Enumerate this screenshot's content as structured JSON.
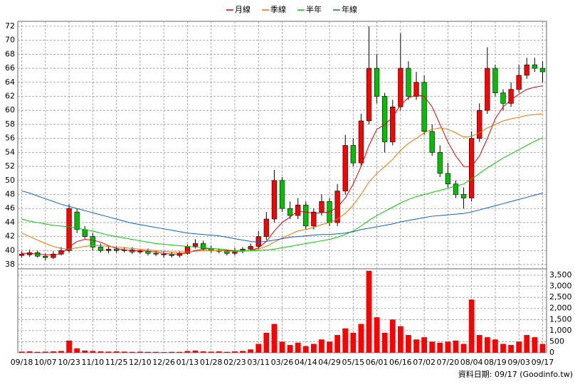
{
  "chart_data": [
    {
      "type": "candlestick",
      "open": [
        39.3,
        39.4,
        39.7,
        39.2,
        39.0,
        39.5,
        40.0,
        45.5,
        43.0,
        42.0,
        40.5,
        40.0,
        40.2,
        40.0,
        40.1,
        39.8,
        39.9,
        39.6,
        39.5,
        39.4,
        39.3,
        39.6,
        40.6,
        41.0,
        40.3,
        40.0,
        39.9,
        39.6,
        40.0,
        40.2,
        40.6,
        42.0,
        44.5,
        50.0,
        46.0,
        45.0,
        46.5,
        43.5,
        45.5,
        47.0,
        44.0,
        48.5,
        55.0,
        52.5,
        58.5,
        66.0,
        62.0,
        55.5,
        60.5,
        66.0,
        62.0,
        64.0,
        57.0,
        54.0,
        51.0,
        49.5,
        48.0,
        47.5,
        56.0,
        60.0,
        66.0,
        62.5,
        61.0,
        63.0,
        65.0,
        66.5,
        66.0
      ],
      "high": [
        39.9,
        40.1,
        40.0,
        39.6,
        39.9,
        40.5,
        46.6,
        46.0,
        43.5,
        42.5,
        41.0,
        40.6,
        40.6,
        40.5,
        40.5,
        40.2,
        40.3,
        40.0,
        39.9,
        39.8,
        39.9,
        40.9,
        41.6,
        41.4,
        40.7,
        40.3,
        40.2,
        40.4,
        40.5,
        41.0,
        42.8,
        45.5,
        51.5,
        50.5,
        47.0,
        47.5,
        47.0,
        46.0,
        48.0,
        47.5,
        49.5,
        56.5,
        56.0,
        59.5,
        72.0,
        68.0,
        62.5,
        61.5,
        71.0,
        67.0,
        65.5,
        65.0,
        58.0,
        55.0,
        52.5,
        50.0,
        49.0,
        57.0,
        61.0,
        69.0,
        66.5,
        63.0,
        64.0,
        66.5,
        67.5,
        67.5,
        67.0
      ],
      "low": [
        39.0,
        39.1,
        39.0,
        38.6,
        38.8,
        39.3,
        39.7,
        42.5,
        41.7,
        40.0,
        39.7,
        39.6,
        39.7,
        39.7,
        39.5,
        39.5,
        39.3,
        39.2,
        39.0,
        39.0,
        39.0,
        39.4,
        40.3,
        40.0,
        39.7,
        39.6,
        39.3,
        39.3,
        39.6,
        39.9,
        40.2,
        41.5,
        44.0,
        45.5,
        44.5,
        44.5,
        43.0,
        43.0,
        45.0,
        43.5,
        43.5,
        48.0,
        52.0,
        52.0,
        58.0,
        61.0,
        54.0,
        55.0,
        60.0,
        61.5,
        61.5,
        56.5,
        53.5,
        50.5,
        49.0,
        47.5,
        46.0,
        47.0,
        55.5,
        59.5,
        62.0,
        60.0,
        60.5,
        62.5,
        64.5,
        65.5,
        64.0
      ],
      "close": [
        39.5,
        39.7,
        39.2,
        39.0,
        39.5,
        40.0,
        46.0,
        43.0,
        42.0,
        40.5,
        40.0,
        40.2,
        40.0,
        40.1,
        39.8,
        39.9,
        39.6,
        39.5,
        39.4,
        39.3,
        39.6,
        40.6,
        41.0,
        40.3,
        40.0,
        39.9,
        39.6,
        40.0,
        40.2,
        40.6,
        42.0,
        44.5,
        50.0,
        46.0,
        45.0,
        46.5,
        43.5,
        45.5,
        47.0,
        44.0,
        48.5,
        55.0,
        52.5,
        58.5,
        66.0,
        62.0,
        55.5,
        60.5,
        66.0,
        62.0,
        64.0,
        57.0,
        54.0,
        51.0,
        49.5,
        48.0,
        47.5,
        56.0,
        60.0,
        66.0,
        62.5,
        61.0,
        63.0,
        65.0,
        66.5,
        66.0,
        65.5
      ],
      "up_color": "#ff0000",
      "down_color": "#00c000",
      "series": [
        {
          "name": "月線",
          "color": "#e00000",
          "values": [
            39.6,
            39.6,
            39.5,
            39.4,
            39.4,
            39.5,
            40.5,
            41.3,
            41.6,
            41.5,
            41.2,
            40.7,
            40.3,
            40.1,
            40.0,
            40.0,
            39.9,
            39.8,
            39.6,
            39.5,
            39.5,
            39.7,
            40.0,
            40.2,
            40.3,
            40.2,
            40.0,
            39.9,
            39.9,
            40.0,
            40.4,
            41.3,
            42.8,
            44.0,
            44.8,
            45.6,
            45.5,
            45.3,
            45.4,
            45.5,
            46.2,
            47.5,
            49.5,
            52.0,
            55.0,
            57.3,
            58.0,
            59.0,
            60.8,
            61.8,
            62.2,
            62.0,
            60.5,
            58.0,
            55.5,
            53.5,
            52.0,
            52.0,
            53.5,
            56.0,
            58.8,
            60.5,
            61.5,
            62.3,
            63.0,
            63.3,
            63.5
          ]
        },
        {
          "name": "季線",
          "color": "#f07000",
          "values": [
            42.5,
            42.0,
            41.5,
            41.0,
            40.6,
            40.3,
            40.2,
            40.4,
            40.6,
            40.7,
            40.7,
            40.6,
            40.5,
            40.4,
            40.3,
            40.2,
            40.1,
            40.0,
            39.9,
            39.8,
            39.8,
            39.8,
            39.9,
            40.0,
            40.0,
            40.0,
            39.9,
            39.9,
            39.9,
            40.0,
            40.2,
            40.6,
            41.2,
            41.8,
            42.3,
            42.8,
            43.0,
            43.3,
            43.7,
            44.0,
            44.5,
            45.3,
            46.5,
            48.0,
            49.8,
            51.0,
            52.0,
            53.0,
            54.3,
            55.3,
            56.0,
            56.8,
            57.3,
            57.5,
            57.3,
            56.8,
            56.2,
            56.3,
            56.8,
            57.5,
            58.0,
            58.5,
            58.8,
            59.0,
            59.3,
            59.4,
            59.5
          ]
        },
        {
          "name": "半年",
          "color": "#00cc00",
          "values": [
            44.5,
            44.2,
            44.0,
            43.8,
            43.6,
            43.5,
            43.4,
            43.2,
            43.0,
            42.8,
            42.5,
            42.2,
            42.0,
            41.8,
            41.6,
            41.4,
            41.2,
            41.0,
            40.9,
            40.8,
            40.7,
            40.6,
            40.5,
            40.4,
            40.3,
            40.2,
            40.1,
            40.0,
            40.0,
            40.0,
            40.0,
            40.1,
            40.2,
            40.4,
            40.6,
            40.8,
            41.0,
            41.2,
            41.4,
            41.6,
            41.9,
            42.3,
            42.8,
            43.5,
            44.3,
            45.0,
            45.6,
            46.2,
            46.8,
            47.3,
            47.7,
            48.0,
            48.3,
            48.6,
            48.9,
            49.2,
            49.5,
            50.2,
            51.0,
            51.8,
            52.5,
            53.2,
            53.8,
            54.4,
            55.0,
            55.6,
            56.1
          ]
        },
        {
          "name": "年線",
          "color": "#1060d0",
          "values": [
            48.5,
            48.2,
            47.8,
            47.4,
            47.0,
            46.6,
            46.3,
            46.0,
            45.7,
            45.4,
            45.1,
            44.8,
            44.5,
            44.2,
            43.9,
            43.7,
            43.5,
            43.3,
            43.1,
            42.9,
            42.7,
            42.5,
            42.4,
            42.3,
            42.2,
            42.1,
            41.9,
            41.7,
            41.5,
            41.3,
            41.2,
            41.3,
            41.5,
            41.7,
            41.9,
            42.0,
            42.1,
            42.2,
            42.3,
            42.3,
            42.4,
            42.5,
            42.7,
            43.0,
            43.2,
            43.4,
            43.6,
            43.8,
            44.1,
            44.3,
            44.5,
            44.7,
            44.9,
            45.0,
            45.1,
            45.2,
            45.3,
            45.5,
            45.8,
            46.1,
            46.4,
            46.7,
            47.0,
            47.3,
            47.6,
            47.9,
            48.2
          ]
        }
      ],
      "ylim": [
        37.4,
        72.7
      ],
      "yticks": [
        38,
        40,
        42,
        44,
        46,
        48,
        50,
        52,
        54,
        56,
        58,
        60,
        62,
        64,
        66,
        68,
        70,
        72
      ],
      "grid": true
    },
    {
      "type": "bar",
      "categories": [
        "09/18",
        null,
        null,
        "10/07",
        null,
        null,
        "10/23",
        null,
        null,
        "11/10",
        null,
        null,
        "11/25",
        null,
        null,
        "12/10",
        null,
        null,
        "12/26",
        null,
        null,
        "01/13",
        null,
        null,
        "01/28",
        null,
        null,
        "02/23",
        null,
        null,
        "03/11",
        null,
        null,
        "03/26",
        null,
        null,
        "04/14",
        null,
        null,
        "04/29",
        null,
        null,
        "05/15",
        null,
        null,
        "06/01",
        null,
        null,
        "06/16",
        null,
        null,
        "07/02",
        null,
        null,
        "07/20",
        null,
        null,
        "08/04",
        null,
        null,
        "08/19",
        null,
        null,
        "09/03",
        null,
        null,
        "09/17"
      ],
      "values": [
        50,
        60,
        40,
        50,
        60,
        80,
        550,
        200,
        100,
        80,
        60,
        50,
        60,
        50,
        40,
        50,
        40,
        40,
        30,
        40,
        40,
        80,
        100,
        60,
        50,
        60,
        40,
        60,
        80,
        150,
        400,
        900,
        1300,
        500,
        350,
        450,
        300,
        400,
        600,
        500,
        800,
        1100,
        900,
        1300,
        3700,
        1600,
        900,
        1500,
        1200,
        800,
        600,
        700,
        500,
        450,
        500,
        550,
        400,
        2400,
        800,
        700,
        600,
        400,
        350,
        500,
        800,
        700,
        400
      ],
      "color": "#ff0000",
      "ylim": [
        0,
        3790
      ],
      "yticks": [
        0,
        500,
        {
          "value": 1000,
          "label": "1,000"
        },
        {
          "value": 1500,
          "label": "1,500"
        },
        {
          "value": 2000,
          "label": "2,000"
        },
        {
          "value": 2500,
          "label": "2,500"
        },
        {
          "value": 3000,
          "label": "3,000"
        },
        {
          "value": 3500,
          "label": "3,500"
        }
      ],
      "grid": true
    }
  ],
  "source": "資料日期: 09/17 (Goodinfo.tw)"
}
